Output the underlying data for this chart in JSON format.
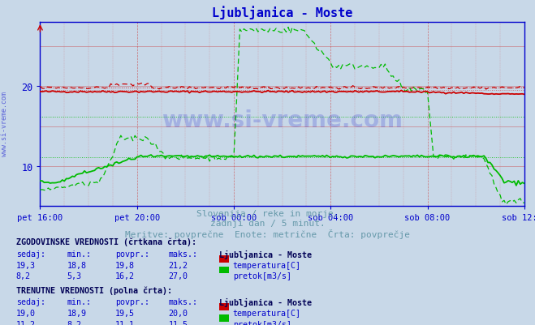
{
  "title": "Ljubljanica - Moste",
  "title_color": "#0000cc",
  "bg_color": "#c8d8e8",
  "plot_bg_color": "#c8d8e8",
  "subtitle_lines": [
    "Slovenija / reke in morje.",
    "zadnji dan / 5 minut.",
    "Meritve: povprečne  Enote: metrične  Črta: povprečje"
  ],
  "subtitle_color": "#6699aa",
  "x_ticks_labels": [
    "pet 16:00",
    "pet 20:00",
    "sob 00:00",
    "sob 04:00",
    "sob 08:00",
    "sob 12:00"
  ],
  "x_ticks_pos": [
    0,
    48,
    96,
    144,
    192,
    240
  ],
  "x_total_points": 240,
  "y_ticks": [
    10,
    20
  ],
  "y_min": 5,
  "y_max": 28,
  "axis_color": "#0000cc",
  "tick_label_color": "#0000cc",
  "watermark": "www.si-vreme.com",
  "temp_color": "#cc0000",
  "flow_color": "#00bb00",
  "hist_label": "ZGODOVINSKE VREDNOSTI (črtkana črta):",
  "curr_label": "TRENUTNE VREDNOSTI (polna črta):",
  "hist_temp_sedaj": "19,3",
  "hist_temp_min": "18,8",
  "hist_temp_povpr": "19,8",
  "hist_temp_maks": "21,2",
  "hist_flow_sedaj": "8,2",
  "hist_flow_min": "5,3",
  "hist_flow_povpr": "16,2",
  "hist_flow_maks": "27,0",
  "curr_temp_sedaj": "19,0",
  "curr_temp_min": "18,9",
  "curr_temp_povpr": "19,5",
  "curr_temp_maks": "20,0",
  "curr_flow_sedaj": "11,2",
  "curr_flow_min": "8,2",
  "curr_flow_povpr": "11,1",
  "curr_flow_maks": "11,5",
  "station_name": "Ljubljanica - Moste",
  "temp_avg_hist": 19.8,
  "temp_avg_curr": 19.5,
  "flow_avg_hist": 16.2,
  "flow_avg_curr": 11.1
}
